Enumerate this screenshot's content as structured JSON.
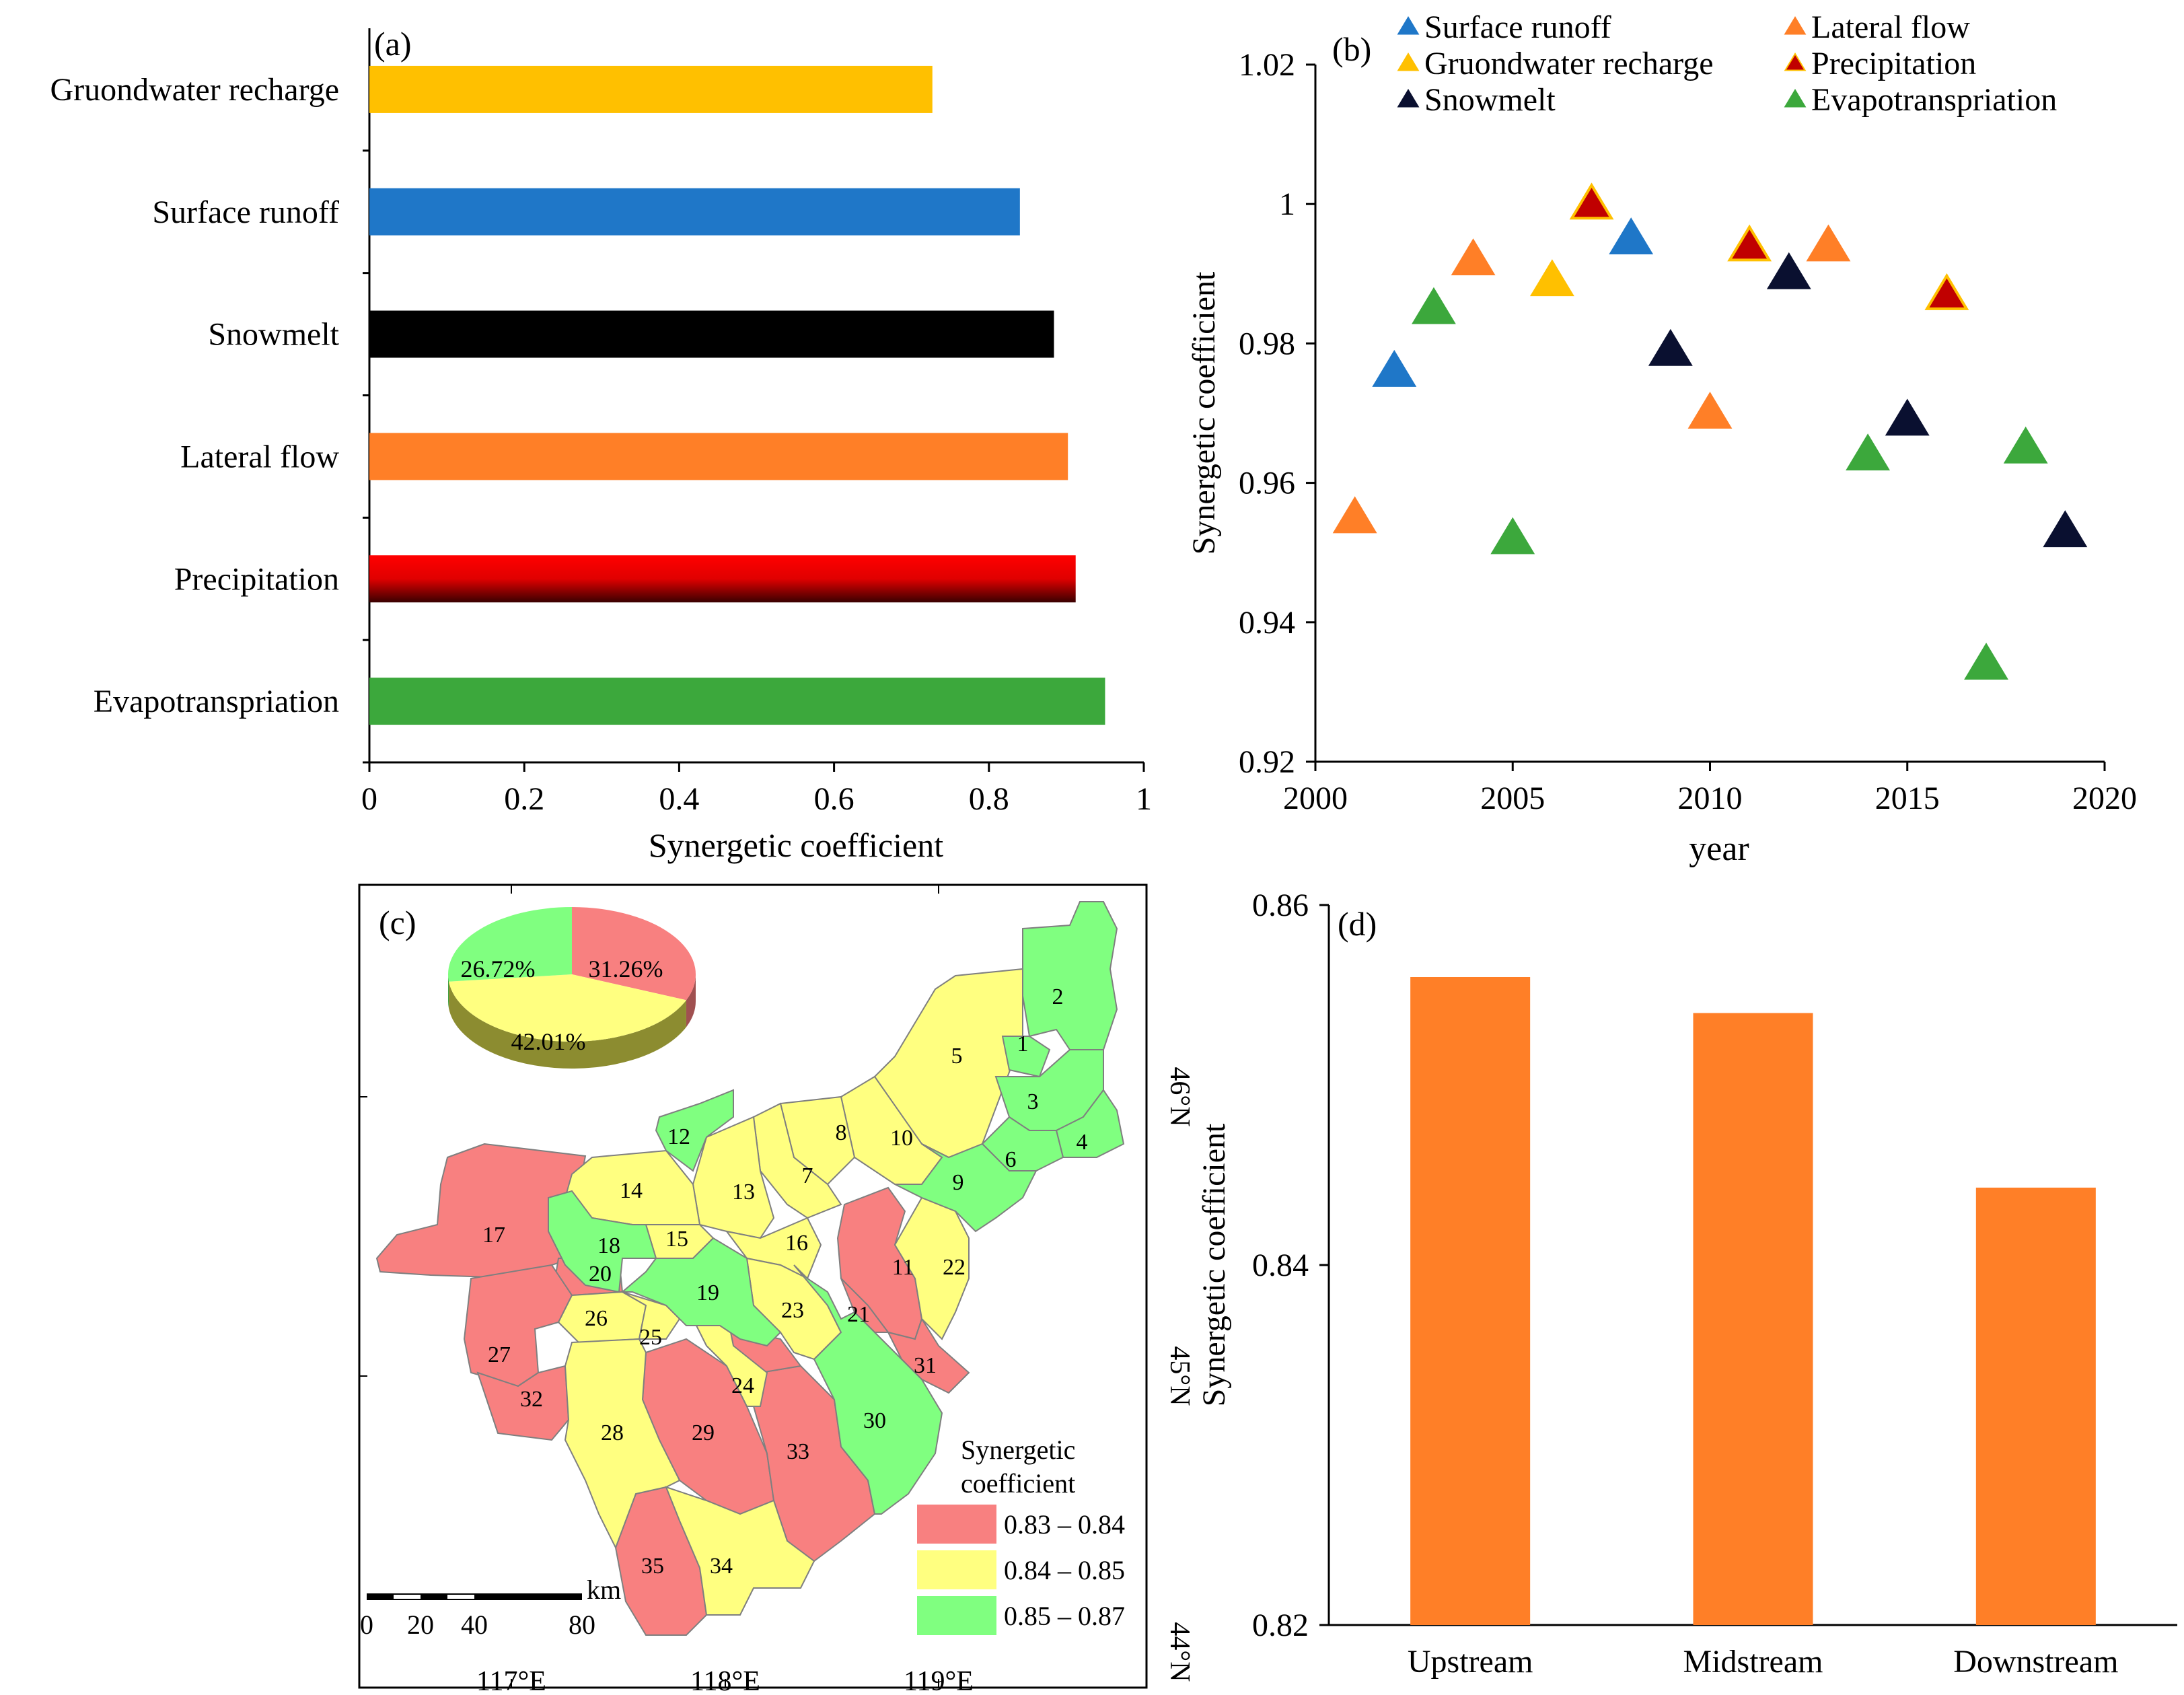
{
  "chart_data": [
    {
      "panel": "(a)",
      "type": "bar",
      "orientation": "horizontal",
      "categories": [
        "Gruondwater recharge",
        "Surface runoff",
        "Snowmelt",
        "Lateral flow",
        "Precipitation",
        "Evapotranspriation"
      ],
      "values": [
        0.727,
        0.84,
        0.884,
        0.902,
        0.912,
        0.95
      ],
      "colors": [
        "#FFC000",
        "#1F77C8",
        "#000000",
        "#FF7F27",
        "#E00000",
        "#3CA83C"
      ],
      "xlabel": "Synergetic coefficient",
      "xlim": [
        0,
        1
      ],
      "xticks": [
        "0",
        "0.2",
        "0.4",
        "0.6",
        "0.8",
        "1"
      ]
    },
    {
      "panel": "(b)",
      "type": "scatter",
      "xlabel": "year",
      "ylabel": "Synergetic coefficient",
      "xlim": [
        2000,
        2020
      ],
      "ylim": [
        0.92,
        1.02
      ],
      "xticks": [
        "2000",
        "2005",
        "2010",
        "2015",
        "2020"
      ],
      "yticks": [
        "0.92",
        "0.94",
        "0.96",
        "0.98",
        "1",
        "1.02"
      ],
      "legend_position": "top",
      "series": [
        {
          "name": "Surface runoff",
          "color": "#1F77C8",
          "edge": "#1F77C8",
          "points": [
            [
              2002,
              0.976
            ],
            [
              2008,
              0.995
            ]
          ]
        },
        {
          "name": "Gruondwater recharge",
          "color": "#FFC000",
          "edge": "#FFC000",
          "points": [
            [
              2006,
              0.989
            ]
          ]
        },
        {
          "name": "Snowmelt",
          "color": "#0A1030",
          "edge": "#0A1030",
          "points": [
            [
              2009,
              0.979
            ],
            [
              2012,
              0.99
            ],
            [
              2015,
              0.969
            ],
            [
              2019,
              0.953
            ]
          ]
        },
        {
          "name": "Lateral flow",
          "color": "#FF7F27",
          "edge": "#FF7F27",
          "points": [
            [
              2001,
              0.955
            ],
            [
              2004,
              0.992
            ],
            [
              2010,
              0.97
            ],
            [
              2013,
              0.994
            ]
          ]
        },
        {
          "name": "Precipitation",
          "color": "#C00000",
          "edge": "#FFC000",
          "points": [
            [
              2007,
              1.0
            ],
            [
              2011,
              0.994
            ],
            [
              2016,
              0.987
            ]
          ]
        },
        {
          "name": "Evapotranspriation",
          "color": "#3CA83C",
          "edge": "#3CA83C",
          "points": [
            [
              2003,
              0.985
            ],
            [
              2005,
              0.952
            ],
            [
              2014,
              0.964
            ],
            [
              2017,
              0.934
            ],
            [
              2018,
              0.965
            ]
          ]
        }
      ]
    },
    {
      "panel": "(c)",
      "type": "pie",
      "slices": [
        {
          "label": "31.26%",
          "value": 31.26,
          "color": "#F88080"
        },
        {
          "label": "42.01%",
          "value": 42.01,
          "color": "#FFFF80"
        },
        {
          "label": "26.72%",
          "value": 26.72,
          "color": "#80FF80"
        }
      ]
    },
    {
      "panel": "(d)",
      "type": "bar",
      "categories": [
        "Upstream",
        "Midstream",
        "Downstream"
      ],
      "values": [
        0.856,
        0.854,
        0.8443
      ],
      "color": "#FF7F27",
      "ylabel": "Synergetic coefficient",
      "ylim": [
        0.82,
        0.86
      ],
      "yticks": [
        "0.82",
        "0.84",
        "0.86"
      ]
    }
  ],
  "map": {
    "label": "(c)",
    "legend_title_1": "Synergetic",
    "legend_title_2": "coefficient",
    "legend": [
      {
        "label": "0.83 – 0.84",
        "color": "#F88080"
      },
      {
        "label": "0.84 – 0.85",
        "color": "#FFFF80"
      },
      {
        "label": "0.85 – 0.87",
        "color": "#80FF80"
      }
    ],
    "scale_unit": "km",
    "scale_ticks": [
      "0",
      "20",
      "40",
      "80"
    ],
    "lon_labels": [
      "117°E",
      "118°E",
      "119°E"
    ],
    "lat_labels": [
      "46°N",
      "45°N",
      "44°N"
    ],
    "subbasins": [
      {
        "id": "1",
        "class": 2
      },
      {
        "id": "2",
        "class": 2
      },
      {
        "id": "3",
        "class": 2
      },
      {
        "id": "4",
        "class": 2
      },
      {
        "id": "5",
        "class": 1
      },
      {
        "id": "6",
        "class": 2
      },
      {
        "id": "7",
        "class": 1
      },
      {
        "id": "8",
        "class": 1
      },
      {
        "id": "9",
        "class": 2
      },
      {
        "id": "10",
        "class": 1
      },
      {
        "id": "11",
        "class": 0
      },
      {
        "id": "12",
        "class": 2
      },
      {
        "id": "13",
        "class": 1
      },
      {
        "id": "14",
        "class": 1
      },
      {
        "id": "15",
        "class": 1
      },
      {
        "id": "16",
        "class": 1
      },
      {
        "id": "17",
        "class": 0
      },
      {
        "id": "18",
        "class": 2
      },
      {
        "id": "19",
        "class": 2
      },
      {
        "id": "20",
        "class": 0
      },
      {
        "id": "21",
        "class": 0
      },
      {
        "id": "22",
        "class": 1
      },
      {
        "id": "23",
        "class": 1
      },
      {
        "id": "24",
        "class": 1
      },
      {
        "id": "25",
        "class": 1
      },
      {
        "id": "26",
        "class": 1
      },
      {
        "id": "27",
        "class": 0
      },
      {
        "id": "28",
        "class": 1
      },
      {
        "id": "29",
        "class": 0
      },
      {
        "id": "30",
        "class": 2
      },
      {
        "id": "31",
        "class": 0
      },
      {
        "id": "32",
        "class": 0
      },
      {
        "id": "33",
        "class": 0
      },
      {
        "id": "34",
        "class": 1
      },
      {
        "id": "35",
        "class": 0
      }
    ]
  }
}
